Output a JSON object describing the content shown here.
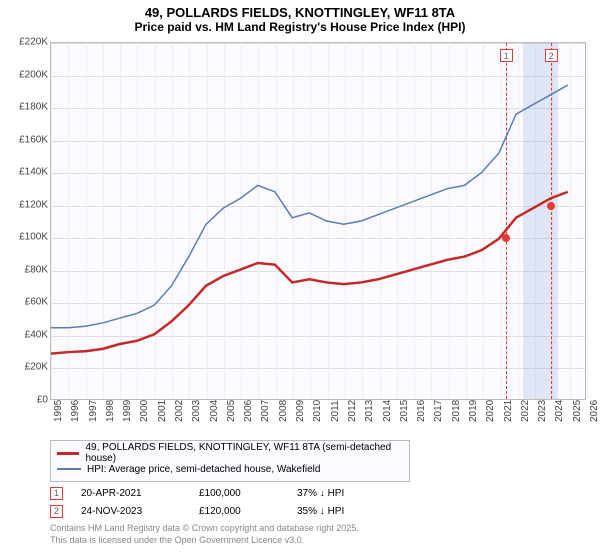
{
  "title": "49, POLLARDS FIELDS, KNOTTINGLEY, WF11 8TA",
  "subtitle": "Price paid vs. HM Land Registry's House Price Index (HPI)",
  "chart": {
    "type": "line",
    "background_color": "#fafaff",
    "grid_color": "#dddddd",
    "border_color": "#bbbbbb",
    "x_years": [
      1995,
      1996,
      1997,
      1998,
      1999,
      2000,
      2001,
      2002,
      2003,
      2004,
      2005,
      2006,
      2007,
      2008,
      2009,
      2010,
      2011,
      2012,
      2013,
      2014,
      2015,
      2016,
      2017,
      2018,
      2019,
      2020,
      2021,
      2022,
      2023,
      2024,
      2025,
      2026
    ],
    "ylim": [
      0,
      220000
    ],
    "ytick_step": 20000,
    "ytick_labels": [
      "£0",
      "£20K",
      "£40K",
      "£60K",
      "£80K",
      "£100K",
      "£120K",
      "£140K",
      "£160K",
      "£180K",
      "£200K",
      "£220K"
    ],
    "highlight_band": {
      "from_year": 2022.3,
      "to_year": 2024.3,
      "color": "rgba(150,170,220,0.25)"
    },
    "marker_lines": [
      {
        "id": "1",
        "year": 2021.3
      },
      {
        "id": "2",
        "year": 2023.9
      }
    ],
    "series": [
      {
        "name": "property",
        "label": "49, POLLARDS FIELDS, KNOTTINGLEY, WF11 8TA (semi-detached house)",
        "color": "#c62828",
        "line_width": 2.5,
        "points_year_value": [
          [
            1995,
            28000
          ],
          [
            1996,
            29000
          ],
          [
            1997,
            29500
          ],
          [
            1998,
            31000
          ],
          [
            1999,
            34000
          ],
          [
            2000,
            36000
          ],
          [
            2001,
            40000
          ],
          [
            2002,
            48000
          ],
          [
            2003,
            58000
          ],
          [
            2004,
            70000
          ],
          [
            2005,
            76000
          ],
          [
            2006,
            80000
          ],
          [
            2007,
            84000
          ],
          [
            2008,
            83000
          ],
          [
            2009,
            72000
          ],
          [
            2010,
            74000
          ],
          [
            2011,
            72000
          ],
          [
            2012,
            71000
          ],
          [
            2013,
            72000
          ],
          [
            2014,
            74000
          ],
          [
            2015,
            77000
          ],
          [
            2016,
            80000
          ],
          [
            2017,
            83000
          ],
          [
            2018,
            86000
          ],
          [
            2019,
            88000
          ],
          [
            2020,
            92000
          ],
          [
            2021,
            99000
          ],
          [
            2022,
            112000
          ],
          [
            2023,
            118000
          ],
          [
            2024,
            124000
          ],
          [
            2025,
            128000
          ]
        ],
        "markers": [
          {
            "id": "1",
            "year": 2021.3,
            "value": 100000
          },
          {
            "id": "2",
            "year": 2023.9,
            "value": 120000
          }
        ]
      },
      {
        "name": "hpi",
        "label": "HPI: Average price, semi-detached house, Wakefield",
        "color": "#5c7db1",
        "line_width": 1.5,
        "points_year_value": [
          [
            1995,
            44000
          ],
          [
            1996,
            44000
          ],
          [
            1997,
            45000
          ],
          [
            1998,
            47000
          ],
          [
            1999,
            50000
          ],
          [
            2000,
            53000
          ],
          [
            2001,
            58000
          ],
          [
            2002,
            70000
          ],
          [
            2003,
            88000
          ],
          [
            2004,
            108000
          ],
          [
            2005,
            118000
          ],
          [
            2006,
            124000
          ],
          [
            2007,
            132000
          ],
          [
            2008,
            128000
          ],
          [
            2009,
            112000
          ],
          [
            2010,
            115000
          ],
          [
            2011,
            110000
          ],
          [
            2012,
            108000
          ],
          [
            2013,
            110000
          ],
          [
            2014,
            114000
          ],
          [
            2015,
            118000
          ],
          [
            2016,
            122000
          ],
          [
            2017,
            126000
          ],
          [
            2018,
            130000
          ],
          [
            2019,
            132000
          ],
          [
            2020,
            140000
          ],
          [
            2021,
            152000
          ],
          [
            2022,
            176000
          ],
          [
            2023,
            182000
          ],
          [
            2024,
            188000
          ],
          [
            2025,
            194000
          ]
        ]
      }
    ]
  },
  "legend": {
    "prop": "49, POLLARDS FIELDS, KNOTTINGLEY, WF11 8TA (semi-detached house)",
    "hpi": "HPI: Average price, semi-detached house, Wakefield"
  },
  "table_rows": [
    {
      "marker": "1",
      "date": "20-APR-2021",
      "price": "£100,000",
      "diff": "37% ↓ HPI"
    },
    {
      "marker": "2",
      "date": "24-NOV-2023",
      "price": "£120,000",
      "diff": "35% ↓ HPI"
    }
  ],
  "attribution": {
    "line1": "Contains HM Land Registry data © Crown copyright and database right 2025.",
    "line2": "This data is licensed under the Open Government Licence v3.0."
  }
}
